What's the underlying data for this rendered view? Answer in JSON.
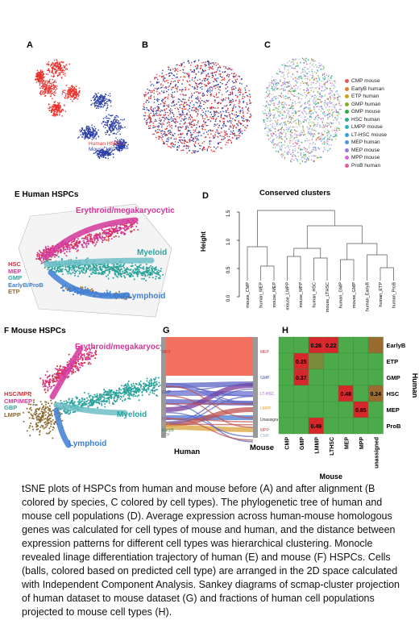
{
  "panels": {
    "A": {
      "letter": "A",
      "legend": [
        {
          "label": "Human HSPCs",
          "color": "#e8332f"
        },
        {
          "label": "Mouse HSPCs",
          "color": "#2a3fa8"
        }
      ]
    },
    "B": {
      "letter": "B"
    },
    "C": {
      "letter": "C",
      "legend": [
        {
          "label": "CMP mouse",
          "color": "#e05a5a"
        },
        {
          "label": "EarlyB human",
          "color": "#d9832a"
        },
        {
          "label": "ETP human",
          "color": "#c8a11e"
        },
        {
          "label": "GMP human",
          "color": "#7fae2a"
        },
        {
          "label": "GMP mouse",
          "color": "#2fa84a"
        },
        {
          "label": "HSC human",
          "color": "#2bab86"
        },
        {
          "label": "LMPP mouse",
          "color": "#29b3b8"
        },
        {
          "label": "LT-HSC mouse",
          "color": "#2aa3d6"
        },
        {
          "label": "MEP human",
          "color": "#5a8fe0"
        },
        {
          "label": "MEP mouse",
          "color": "#9a78e0"
        },
        {
          "label": "MPP mouse",
          "color": "#d46ad6"
        },
        {
          "label": "ProB human",
          "color": "#e0609a"
        }
      ]
    },
    "D": {
      "letter": "D",
      "title": "Conserved clusters",
      "ylabel": "Height",
      "yticks": [
        "1.5",
        "1.0",
        "0.5",
        "0.0"
      ],
      "leaves": [
        "mouse_CMP",
        "human_MEP",
        "mouse_MEP",
        "mouse_LMPP",
        "mouse_MPP",
        "human_HSC",
        "mouse_LTHSC",
        "human_GMP",
        "mouse_GMP",
        "human_EarlyB",
        "human_ETP",
        "human_ProB"
      ]
    },
    "E": {
      "letter": "E",
      "title": "Human HSPCs",
      "arrow_labels": {
        "ery": "Erythroid/megakaryocytic",
        "mye": "Myeloid",
        "lym": "Lymphoid"
      },
      "legend": [
        {
          "label": "HSC",
          "color": "#d6303a"
        },
        {
          "label": "MEP",
          "color": "#d4379a"
        },
        {
          "label": "GMP",
          "color": "#2aa39c"
        },
        {
          "label": "EarlyB/ProB",
          "color": "#3f7fd6"
        },
        {
          "label": "ETP",
          "color": "#9a6a30"
        }
      ]
    },
    "F": {
      "letter": "F",
      "title": "Mouse HSPCs",
      "arrow_labels": {
        "ery": "Erythroid/megakaryocytic",
        "mye": "Myeloid",
        "lym": "Lymphoid"
      },
      "legend": [
        {
          "label": "HSC/MPP",
          "color": "#d6303a"
        },
        {
          "label": "CMP/MEP",
          "color": "#d4379a"
        },
        {
          "label": "GBP",
          "color": "#2aa39c"
        },
        {
          "label": "LMPP",
          "color": "#8a6a30"
        }
      ]
    },
    "G": {
      "letter": "G",
      "left_title": "Human",
      "right_title": "Mouse",
      "left_labels": [
        "MEP",
        "GMP",
        "HSC",
        "ETP",
        "EarlyB",
        "ETP"
      ],
      "right_labels": [
        "MEP",
        "GMP",
        "LT-HSC",
        "LMPP",
        "Unassigned",
        "MPP",
        "CMP"
      ]
    },
    "H": {
      "letter": "H",
      "xlabel": "Mouse",
      "ylabel": "Human",
      "cols": [
        "CMP",
        "GMP",
        "LMMP",
        "LTHSC",
        "MEP",
        "MPP",
        "unassigned"
      ],
      "rows": [
        "EarlyB",
        "ETP",
        "GMP",
        "HSC",
        "MEP",
        "ProB"
      ],
      "values": [
        [
          "",
          "",
          "0.26",
          "0.22",
          "",
          "",
          ""
        ],
        [
          "",
          "0.25",
          "",
          "",
          "",
          "",
          ""
        ],
        [
          "",
          "0.37",
          "",
          "",
          "",
          "",
          ""
        ],
        [
          "",
          "",
          "",
          "",
          "0.48",
          "",
          "0.24"
        ],
        [
          "",
          "",
          "",
          "",
          "",
          "0.85",
          ""
        ],
        [
          "",
          "",
          "0.49",
          "",
          "",
          "",
          ""
        ]
      ],
      "colors": [
        [
          "#4caa4a",
          "#4caa4a",
          "#d6272c",
          "#d6272c",
          "#4caa4a",
          "#4caa4a",
          "#9a6a2e"
        ],
        [
          "#4caa4a",
          "#d6272c",
          "#7a8a3a",
          "#4caa4a",
          "#4caa4a",
          "#4caa4a",
          "#4caa4a"
        ],
        [
          "#4caa4a",
          "#d6272c",
          "#4caa4a",
          "#4caa4a",
          "#4caa4a",
          "#4caa4a",
          "#4caa4a"
        ],
        [
          "#4caa4a",
          "#4caa4a",
          "#4caa4a",
          "#4caa4a",
          "#d6272c",
          "#4caa4a",
          "#9a6a2e"
        ],
        [
          "#4caa4a",
          "#4caa4a",
          "#4caa4a",
          "#4caa4a",
          "#4caa4a",
          "#d6272c",
          "#4caa4a"
        ],
        [
          "#4caa4a",
          "#4caa4a",
          "#d6272c",
          "#4caa4a",
          "#4caa4a",
          "#4caa4a",
          "#4caa4a"
        ]
      ]
    }
  },
  "caption": "tSNE plots of HSPCs from human and mouse before (A) and after alignment (B colored by species, C colored by cell types).  The phylogenetic tree of human and mouse  cell populations (D). Average expression across human-mouse homologous genes was calculated for cell types of mouse and human, and the distance between expression patterns for different cell types was hierarchical clustering. Monocle revealed linage differentiation trajectory of human (E) and mouse (F) HSPCs. Cells (balls, colored based on predicted cell type) are arranged in the 2D space calculated with Independent Component Analysis. Sankey diagrams of scmap-cluster projection of human dataset to mouse dataset (G) and fractions of human cell populations projected to mouse cell types (H)."
}
